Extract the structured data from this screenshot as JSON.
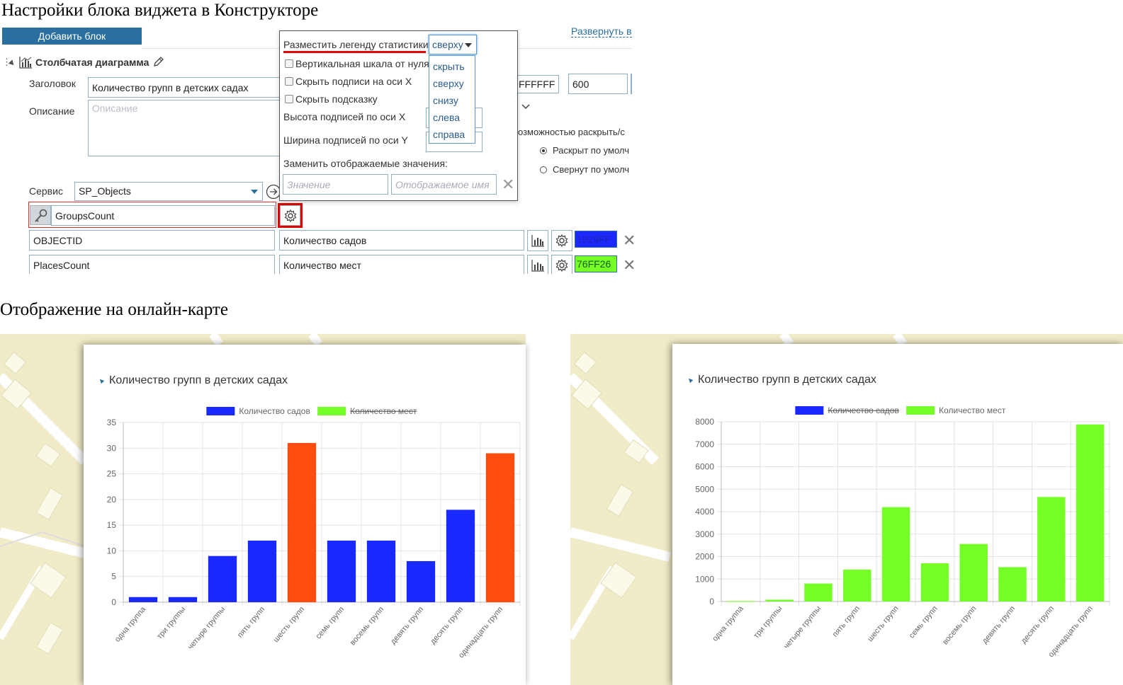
{
  "page_title": "Настройки блока виджета в Конструкторе",
  "section_title": "Отображение на онлайн-карте",
  "constructor": {
    "add_block_label": "Добавить блок",
    "expand_link": "Развернуть в",
    "block_name": "Столбчатая диаграмма",
    "title_label": "Заголовок",
    "title_value": "Количество групп в детских садах",
    "desc_label": "Описание",
    "desc_placeholder": "Описание",
    "color_value": "FFFFFF",
    "height_value": "600",
    "collapse_text": "озможностью раскрыть/с",
    "radio_expanded": "Раскрыт по умолч",
    "radio_collapsed": "Свернут по умолч",
    "service_label": "Сервис",
    "service_value": "SP_Objects",
    "key_field": "GroupsCount",
    "fields": [
      {
        "name": "OBJECTID",
        "label": "Количество садов",
        "color": "1929FF",
        "color_hex": "#1929FF"
      },
      {
        "name": "PlacesCount",
        "label": "Количество мест",
        "color": "76FF26",
        "color_hex": "#76FF26"
      }
    ]
  },
  "settings_popup": {
    "legend_label": "Разместить легенду статистики",
    "legend_selected": "сверху",
    "legend_options": [
      "скрыть",
      "сверху",
      "снизу",
      "слева",
      "справа"
    ],
    "vertical_scale": "Вертикальная шкала от нуля",
    "hide_x_labels": "Скрыть подписи на оси X",
    "hide_tooltip": "Скрыть подсказку",
    "x_label_height": "Высота подписей по оси X",
    "y_label_width": "Ширина подписей по оси Y",
    "replace_values": "Заменить отображаемые значения:",
    "value_placeholder": "Значение",
    "display_name_placeholder": "Отображаемое имя"
  },
  "chart_data": [
    {
      "type": "bar",
      "title": "Количество групп в детских садах",
      "categories": [
        "одна группа",
        "три группы",
        "четыре группы",
        "пять групп",
        "шесть групп",
        "семь групп",
        "восемь групп",
        "девять групп",
        "десять групп",
        "одинадцать групп"
      ],
      "series": [
        {
          "name": "Количество садов",
          "values": [
            1,
            1,
            9,
            12,
            31,
            12,
            12,
            8,
            18,
            29
          ],
          "color": "#1929FF",
          "highlight_color": "#FF4D0F",
          "visible": true
        },
        {
          "name": "Количество мест",
          "color": "#76FF26",
          "visible": false
        }
      ],
      "ylim": [
        0,
        35
      ],
      "yticks": [
        0,
        5,
        10,
        15,
        20,
        25,
        30,
        35
      ],
      "legend": "top",
      "grid": true
    },
    {
      "type": "bar",
      "title": "Количество групп в детских садах",
      "categories": [
        "одна группа",
        "три группы",
        "четыре группы",
        "пять групп",
        "шесть групп",
        "семь групп",
        "восемь групп",
        "девять групп",
        "десять групп",
        "одинадцать групп"
      ],
      "series": [
        {
          "name": "Количество садов",
          "color": "#1929FF",
          "visible": false
        },
        {
          "name": "Количество мест",
          "values": [
            20,
            80,
            800,
            1420,
            4200,
            1700,
            2560,
            1530,
            4650,
            7880
          ],
          "color": "#76FF26",
          "visible": true
        }
      ],
      "ylim": [
        0,
        8000
      ],
      "yticks": [
        0,
        1000,
        2000,
        3000,
        4000,
        5000,
        6000,
        7000,
        8000
      ],
      "legend": "top",
      "grid": true
    }
  ]
}
